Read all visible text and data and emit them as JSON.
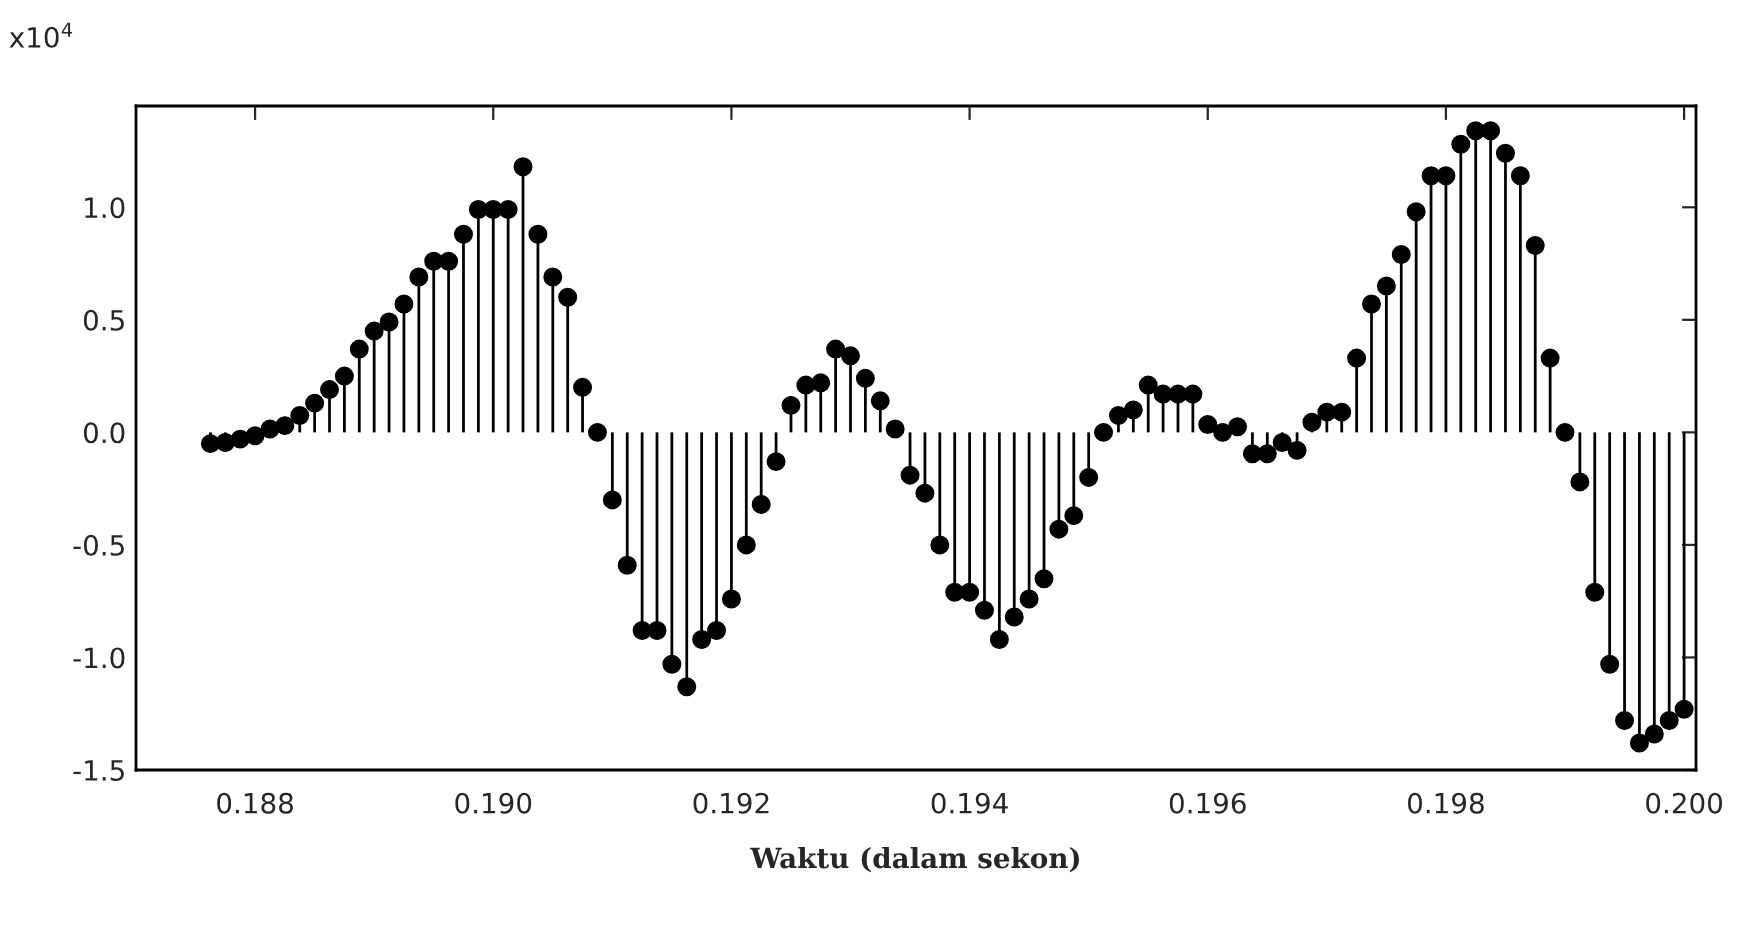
{
  "chart_data": {
    "type": "lollipop",
    "xlabel": "Waktu (dalam sekon)",
    "annotations": [
      "x10$^{4}$"
    ],
    "x": [
      0.187625,
      0.18775,
      0.187875,
      0.188,
      0.188125,
      0.18825,
      0.188375,
      0.1885,
      0.188625,
      0.18875,
      0.188875,
      0.189,
      0.189125,
      0.18925,
      0.189375,
      0.1895,
      0.189625,
      0.18975,
      0.189875,
      0.19,
      0.190125,
      0.19025,
      0.190375,
      0.1905,
      0.190625,
      0.19075,
      0.190875,
      0.191,
      0.191125,
      0.19125,
      0.191375,
      0.1915,
      0.191625,
      0.19175,
      0.191875,
      0.192,
      0.192125,
      0.19225,
      0.192375,
      0.1925,
      0.192625,
      0.19275,
      0.192875,
      0.193,
      0.193125,
      0.19325,
      0.193375,
      0.1935,
      0.193625,
      0.19375,
      0.193875,
      0.194,
      0.194125,
      0.19425,
      0.194375,
      0.1945,
      0.194625,
      0.19475,
      0.194875,
      0.195,
      0.195125,
      0.19525,
      0.195375,
      0.1955,
      0.195625,
      0.19575,
      0.195875,
      0.196,
      0.196125,
      0.19625,
      0.196375,
      0.1965,
      0.196625,
      0.19675,
      0.196875,
      0.197,
      0.197125,
      0.19725,
      0.197375,
      0.1975,
      0.197625,
      0.19775,
      0.197875,
      0.198,
      0.198125,
      0.19825,
      0.198375,
      0.1985,
      0.198625,
      0.19875,
      0.198875,
      0.199,
      0.199125,
      0.19925,
      0.199375,
      0.1995,
      0.199625,
      0.19975,
      0.199875,
      0.2
    ],
    "series": [
      {
        "color": "#000000",
        "values": [
          -0.05,
          -0.045,
          -0.03,
          -0.015,
          0.015,
          0.03,
          0.075,
          0.13,
          0.19,
          0.25,
          0.37,
          0.45,
          0.49,
          0.57,
          0.69,
          0.76,
          0.76,
          0.88,
          0.99,
          0.99,
          0.99,
          1.18,
          0.88,
          0.69,
          0.6,
          0.2,
          0.0,
          -0.3,
          -0.59,
          -0.88,
          -0.88,
          -1.03,
          -1.13,
          -0.92,
          -0.88,
          -0.74,
          -0.5,
          -0.32,
          -0.13,
          0.12,
          0.21,
          0.22,
          0.37,
          0.34,
          0.24,
          0.14,
          0.015,
          -0.19,
          -0.27,
          -0.5,
          -0.71,
          -0.71,
          -0.79,
          -0.92,
          -0.82,
          -0.74,
          -0.65,
          -0.43,
          -0.37,
          -0.2,
          0.0,
          0.075,
          0.1,
          0.21,
          0.17,
          0.17,
          0.17,
          0.035,
          0.0,
          0.025,
          -0.095,
          -0.095,
          -0.045,
          -0.08,
          0.045,
          0.09,
          0.09,
          0.33,
          0.57,
          0.65,
          0.79,
          0.98,
          1.14,
          1.14,
          1.28,
          1.34,
          1.34,
          1.24,
          1.14,
          0.83,
          0.33,
          0.0,
          -0.22,
          -0.71,
          -1.03,
          -1.28,
          -1.38,
          -1.34,
          -1.28,
          -1.23
        ]
      }
    ],
    "xlim": [
      0.187,
      0.2001
    ],
    "ylim": [
      -1.5,
      1.45
    ],
    "xticks": [
      {
        "value": 0.188,
        "label": "0.188"
      },
      {
        "value": 0.19,
        "label": "0.190"
      },
      {
        "value": 0.192,
        "label": "0.192"
      },
      {
        "value": 0.194,
        "label": "0.194"
      },
      {
        "value": 0.196,
        "label": "0.196"
      },
      {
        "value": 0.198,
        "label": "0.198"
      },
      {
        "value": 0.2,
        "label": "0.200"
      }
    ],
    "yticks": [
      {
        "value": -1.5,
        "label": "-1.5"
      },
      {
        "value": -1.0,
        "label": "-1.0"
      },
      {
        "value": -0.5,
        "label": "-0.5"
      },
      {
        "value": 0.0,
        "label": "0.0"
      },
      {
        "value": 0.5,
        "label": "0.5"
      },
      {
        "value": 1.0,
        "label": "1.0"
      }
    ],
    "marker": "circle",
    "grid": false,
    "legend": false
  }
}
